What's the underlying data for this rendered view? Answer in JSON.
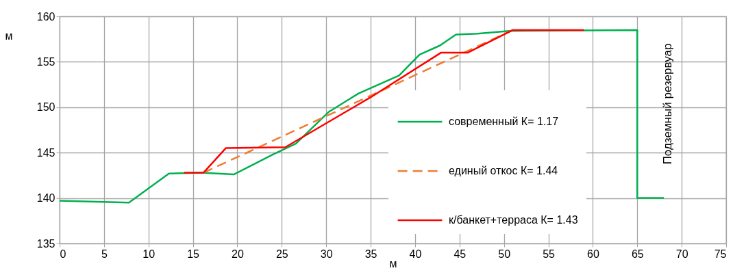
{
  "chart_data": {
    "type": "line",
    "xlabel": "м",
    "ylabel": "м",
    "xlim": [
      0,
      75
    ],
    "xticks": [
      0,
      5,
      10,
      15,
      20,
      25,
      30,
      35,
      40,
      45,
      50,
      55,
      60,
      65,
      70,
      75
    ],
    "ylim": [
      135,
      160
    ],
    "yticks": [
      135,
      140,
      145,
      150,
      155,
      160
    ],
    "grid": true,
    "legend": "right",
    "marker": "none",
    "annotations": [
      "Подземный резервуар"
    ],
    "series": [
      {
        "name": "современный К= 1.17",
        "color": "#00b050",
        "line_style": "solid",
        "x": [
          0,
          7.8,
          12.3,
          16,
          19.6,
          24,
          26.6,
          30.3,
          33.6,
          38.2,
          40.5,
          42.8,
          44.6,
          47,
          50.6,
          65,
          65,
          68
        ],
        "values": [
          139.7,
          139.5,
          142.7,
          142.8,
          142.6,
          144.8,
          146,
          149.5,
          151.5,
          153.5,
          155.8,
          156.8,
          158,
          158.1,
          158.4,
          158.5,
          140,
          140
        ]
      },
      {
        "name": "единый откос К= 1.44",
        "color": "#ed7d31",
        "line_style": "dashed",
        "x": [
          16.2,
          51
        ],
        "values": [
          142.8,
          158.5
        ]
      },
      {
        "name": "к/банкет+терраса К= 1.43",
        "color": "#ff0000",
        "line_style": "solid",
        "x": [
          14,
          16.2,
          18.7,
          25.4,
          35,
          42.9,
          45.9,
          51,
          59
        ],
        "values": [
          142.8,
          142.8,
          145.5,
          145.6,
          151.1,
          156,
          156,
          158.5,
          158.5
        ]
      }
    ]
  }
}
